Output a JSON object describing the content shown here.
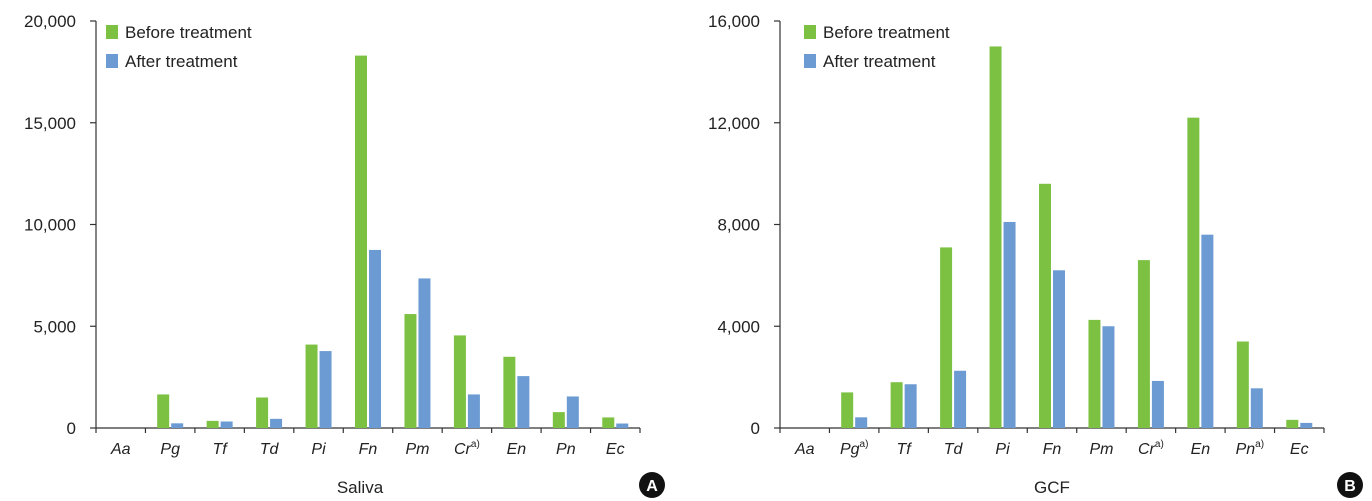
{
  "colors": {
    "before": "#7dc143",
    "after": "#6b9bd2",
    "axis": "#333333",
    "badge": "#111111",
    "badge_text": "#ffffff"
  },
  "chart_data": [
    {
      "type": "bar",
      "panel_label": "A",
      "xlabel": "Saliva",
      "ylabel": "",
      "categories": [
        {
          "name": "Aa",
          "footnote": ""
        },
        {
          "name": "Pg",
          "footnote": ""
        },
        {
          "name": "Tf",
          "footnote": ""
        },
        {
          "name": "Td",
          "footnote": ""
        },
        {
          "name": "Pi",
          "footnote": ""
        },
        {
          "name": "Fn",
          "footnote": ""
        },
        {
          "name": "Pm",
          "footnote": ""
        },
        {
          "name": "Cr",
          "footnote": "a)"
        },
        {
          "name": "En",
          "footnote": ""
        },
        {
          "name": "Pn",
          "footnote": ""
        },
        {
          "name": "Ec",
          "footnote": ""
        }
      ],
      "series": [
        {
          "name": "Before treatment",
          "values": [
            0,
            1650,
            350,
            1500,
            4100,
            18300,
            5600,
            4550,
            3500,
            780,
            520
          ]
        },
        {
          "name": "After treatment",
          "values": [
            0,
            230,
            320,
            450,
            3780,
            8750,
            7350,
            1650,
            2550,
            1550,
            220
          ]
        }
      ],
      "ylim": [
        0,
        20000
      ],
      "yticks": [
        {
          "value": 0,
          "label": "0"
        },
        {
          "value": 5000,
          "label": "5,000"
        },
        {
          "value": 10000,
          "label": "10,000"
        },
        {
          "value": 15000,
          "label": "15,000"
        },
        {
          "value": 20000,
          "label": "20,000"
        }
      ],
      "legend_position": "top-left",
      "grid": false
    },
    {
      "type": "bar",
      "panel_label": "B",
      "xlabel": "GCF",
      "ylabel": "",
      "categories": [
        {
          "name": "Aa",
          "footnote": ""
        },
        {
          "name": "Pg",
          "footnote": "a)"
        },
        {
          "name": "Tf",
          "footnote": ""
        },
        {
          "name": "Td",
          "footnote": ""
        },
        {
          "name": "Pi",
          "footnote": ""
        },
        {
          "name": "Fn",
          "footnote": ""
        },
        {
          "name": "Pm",
          "footnote": ""
        },
        {
          "name": "Cr",
          "footnote": "a)"
        },
        {
          "name": "En",
          "footnote": ""
        },
        {
          "name": "Pn",
          "footnote": "a)"
        },
        {
          "name": "Ec",
          "footnote": ""
        }
      ],
      "series": [
        {
          "name": "Before treatment",
          "values": [
            0,
            1400,
            1800,
            7100,
            15000,
            9600,
            4250,
            6600,
            12200,
            3400,
            320
          ]
        },
        {
          "name": "After treatment",
          "values": [
            0,
            420,
            1720,
            2250,
            8100,
            6200,
            4000,
            1850,
            7600,
            1560,
            200
          ]
        }
      ],
      "ylim": [
        0,
        16000
      ],
      "yticks": [
        {
          "value": 0,
          "label": "0"
        },
        {
          "value": 4000,
          "label": "4,000"
        },
        {
          "value": 8000,
          "label": "8,000"
        },
        {
          "value": 12000,
          "label": "12,000"
        },
        {
          "value": 16000,
          "label": "16,000"
        }
      ],
      "legend_position": "top-left",
      "grid": false
    }
  ]
}
